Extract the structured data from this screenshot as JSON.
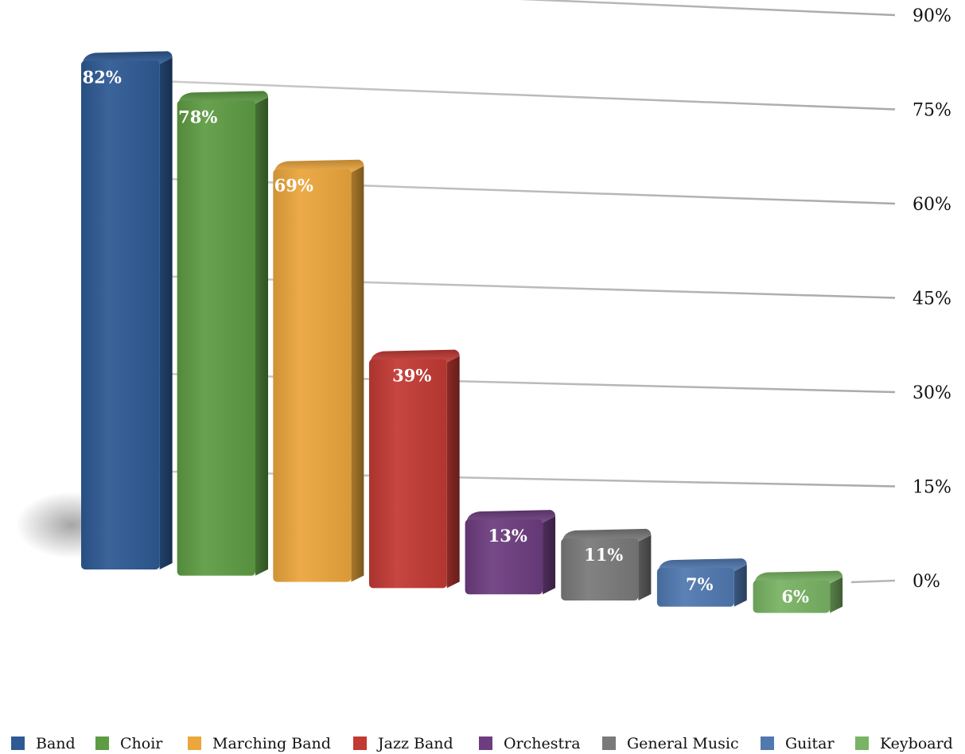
{
  "chart_data": {
    "type": "bar",
    "categories": [
      "Band",
      "Choir",
      "Marching Band",
      "Jazz Band",
      "Orchestra",
      "General Music",
      "Guitar",
      "Keyboard"
    ],
    "values": [
      82,
      78,
      69,
      39,
      13,
      11,
      7,
      6
    ],
    "data_labels": [
      "82%",
      "78%",
      "69%",
      "39%",
      "13%",
      "11%",
      "7%",
      "6%"
    ],
    "colors": [
      "#2e5a94",
      "#5e9c44",
      "#eba63c",
      "#c23a34",
      "#6d3d7f",
      "#7a7a7a",
      "#5079b0",
      "#79b364"
    ],
    "ylim": [
      0,
      90
    ],
    "yticks": [
      0,
      15,
      30,
      45,
      60,
      75,
      90
    ],
    "ytick_labels": [
      "0%",
      "15%",
      "30%",
      "45%",
      "60%",
      "75%",
      "90%"
    ],
    "grid": true,
    "style": "3d-perspective",
    "legend_position": "bottom",
    "title": "",
    "xlabel": "",
    "ylabel": ""
  }
}
